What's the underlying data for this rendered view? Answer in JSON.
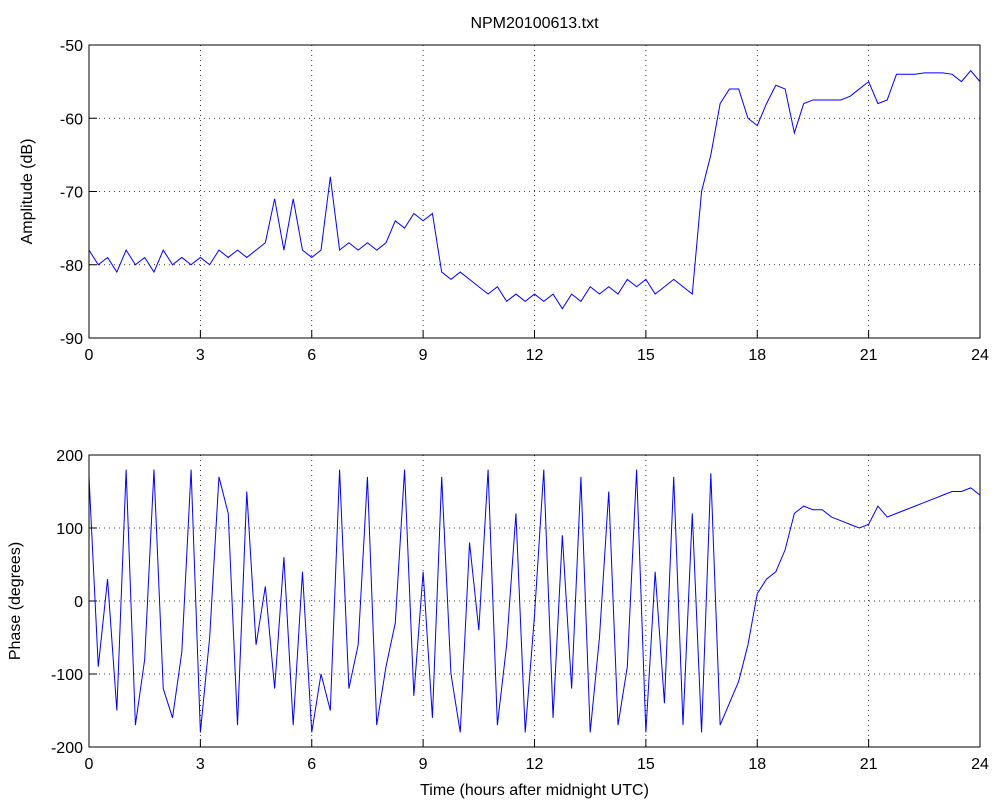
{
  "chart_data": [
    {
      "type": "line",
      "title": "NPM20100613.txt",
      "ylabel": "Amplitude (dB)",
      "x": [
        0,
        0.25,
        0.5,
        0.75,
        1,
        1.25,
        1.5,
        1.75,
        2,
        2.25,
        2.5,
        2.75,
        3,
        3.25,
        3.5,
        3.75,
        4,
        4.25,
        4.5,
        4.75,
        5,
        5.25,
        5.5,
        5.75,
        6,
        6.25,
        6.5,
        6.75,
        7,
        7.25,
        7.5,
        7.75,
        8,
        8.25,
        8.5,
        8.75,
        9,
        9.25,
        9.5,
        9.75,
        10,
        10.25,
        10.5,
        10.75,
        11,
        11.25,
        11.5,
        11.75,
        12,
        12.25,
        12.5,
        12.75,
        13,
        13.25,
        13.5,
        13.75,
        14,
        14.25,
        14.5,
        14.75,
        15,
        15.25,
        15.5,
        15.75,
        16,
        16.25,
        16.5,
        16.75,
        17,
        17.25,
        17.5,
        17.75,
        18,
        18.25,
        18.5,
        18.75,
        19,
        19.25,
        19.5,
        19.75,
        20,
        20.25,
        20.5,
        20.75,
        21,
        21.25,
        21.5,
        21.75,
        22,
        22.25,
        22.5,
        22.75,
        23,
        23.25,
        23.5,
        23.75,
        24
      ],
      "series": [
        {
          "color": "#0000ff",
          "values": [
            -78,
            -80,
            -79,
            -81,
            -78,
            -80,
            -79,
            -81,
            -78,
            -80,
            -79,
            -80,
            -79,
            -80,
            -78,
            -79,
            -78,
            -79,
            -78,
            -77,
            -71,
            -78,
            -71,
            -78,
            -79,
            -78,
            -68,
            -78,
            -77,
            -78,
            -77,
            -78,
            -77,
            -74,
            -75,
            -73,
            -74,
            -73,
            -81,
            -82,
            -81,
            -82,
            -83,
            -84,
            -83,
            -85,
            -84,
            -85,
            -84,
            -85,
            -84,
            -86,
            -84,
            -85,
            -83,
            -84,
            -83,
            -84,
            -82,
            -83,
            -82,
            -84,
            -83,
            -82,
            -83,
            -84,
            -70,
            -65,
            -58,
            -56,
            -56,
            -60,
            -61,
            -58,
            -55.5,
            -56,
            -62,
            -58,
            -57.5,
            -57.5,
            -57.5,
            -57.5,
            -57,
            -56,
            -55,
            -58,
            -57.5,
            -54,
            -54,
            -54,
            -53.8,
            -53.8,
            -53.8,
            -54,
            -55,
            -53.5,
            -55
          ]
        }
      ],
      "xlim": [
        0,
        24
      ],
      "ylim": [
        -90,
        -50
      ],
      "xticks": [
        0,
        3,
        6,
        9,
        12,
        15,
        18,
        21,
        24
      ],
      "yticks": [
        -90,
        -80,
        -70,
        -60,
        -50
      ],
      "grid": true
    },
    {
      "type": "line",
      "ylabel": "Phase (degrees)",
      "xlabel": "Time (hours after midnight UTC)",
      "x": [
        0,
        0.25,
        0.5,
        0.75,
        1,
        1.25,
        1.5,
        1.75,
        2,
        2.25,
        2.5,
        2.75,
        3,
        3.25,
        3.5,
        3.75,
        4,
        4.25,
        4.5,
        4.75,
        5,
        5.25,
        5.5,
        5.75,
        6,
        6.25,
        6.5,
        6.75,
        7,
        7.25,
        7.5,
        7.75,
        8,
        8.25,
        8.5,
        8.75,
        9,
        9.25,
        9.5,
        9.75,
        10,
        10.25,
        10.5,
        10.75,
        11,
        11.25,
        11.5,
        11.75,
        12,
        12.25,
        12.5,
        12.75,
        13,
        13.25,
        13.5,
        13.75,
        14,
        14.25,
        14.5,
        14.75,
        15,
        15.25,
        15.5,
        15.75,
        16,
        16.25,
        16.5,
        16.75,
        17,
        17.25,
        17.5,
        17.75,
        18,
        18.25,
        18.5,
        18.75,
        19,
        19.25,
        19.5,
        19.75,
        20,
        20.25,
        20.5,
        20.75,
        21,
        21.25,
        21.5,
        21.75,
        22,
        22.25,
        22.5,
        22.75,
        23,
        23.25,
        23.5,
        23.75,
        24
      ],
      "series": [
        {
          "color": "#0000ff",
          "values": [
            170,
            -90,
            30,
            -150,
            180,
            -170,
            -80,
            180,
            -120,
            -160,
            -70,
            180,
            -180,
            -50,
            170,
            120,
            -170,
            150,
            -60,
            20,
            -120,
            60,
            -170,
            40,
            -180,
            -100,
            -150,
            180,
            -120,
            -60,
            170,
            -170,
            -90,
            -30,
            180,
            -130,
            40,
            -160,
            170,
            -100,
            -180,
            80,
            -40,
            180,
            -170,
            -60,
            120,
            -180,
            -20,
            180,
            -160,
            90,
            -120,
            170,
            -180,
            -50,
            150,
            -170,
            -90,
            180,
            -180,
            40,
            -140,
            170,
            -170,
            120,
            -180,
            175,
            -170,
            -140,
            -110,
            -60,
            10,
            30,
            40,
            70,
            120,
            130,
            125,
            125,
            115,
            110,
            105,
            100,
            105,
            130,
            115,
            120,
            125,
            130,
            135,
            140,
            145,
            150,
            150,
            155,
            145
          ]
        }
      ],
      "xlim": [
        0,
        24
      ],
      "ylim": [
        -200,
        200
      ],
      "xticks": [
        0,
        3,
        6,
        9,
        12,
        15,
        18,
        21,
        24
      ],
      "yticks": [
        -200,
        -100,
        0,
        100,
        200
      ],
      "grid": true
    }
  ]
}
